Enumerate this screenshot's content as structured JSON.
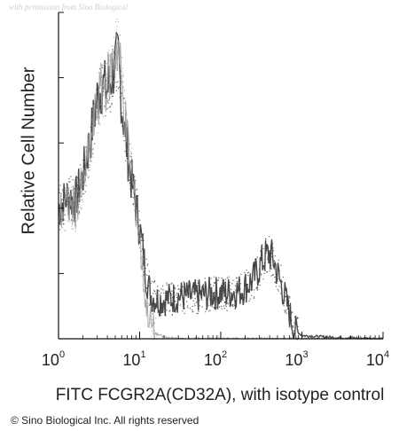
{
  "watermark": "with permission from Sino Biological",
  "copyright": "© Sino Biological Inc. All rights reserved",
  "chart_data": {
    "type": "area",
    "xlabel": "FITC FCGR2A(CD32A), with isotype control",
    "ylabel": "Relative Cell Number",
    "xscale": "log",
    "xlim": [
      1,
      10000
    ],
    "ylim": [
      0,
      1
    ],
    "x_ticks": [
      {
        "value": 1,
        "base": "10",
        "exp": "0"
      },
      {
        "value": 10,
        "base": "10",
        "exp": "1"
      },
      {
        "value": 100,
        "base": "10",
        "exp": "2"
      },
      {
        "value": 1000,
        "base": "10",
        "exp": "3"
      },
      {
        "value": 10000,
        "base": "10",
        "exp": "4"
      }
    ],
    "grid": false,
    "series": [
      {
        "color": "#2a2a2a",
        "x": [
          1.0,
          1.3,
          1.6,
          2.0,
          2.5,
          3.0,
          3.5,
          4.0,
          4.5,
          5.0,
          5.5,
          6.0,
          7.0,
          8.0,
          9.0,
          10.0,
          11.0,
          12.0,
          14.0,
          17.0,
          20.0,
          30.0,
          50.0,
          80.0,
          120.0,
          180.0,
          250.0,
          300.0,
          350.0,
          400.0,
          450.0,
          500.0,
          600.0,
          700.0,
          800.0,
          1000.0,
          2000.0,
          10000.0
        ],
        "y": [
          0.4,
          0.44,
          0.42,
          0.5,
          0.62,
          0.74,
          0.78,
          0.76,
          0.8,
          0.84,
          0.86,
          0.72,
          0.58,
          0.48,
          0.41,
          0.34,
          0.27,
          0.19,
          0.13,
          0.12,
          0.12,
          0.13,
          0.13,
          0.14,
          0.14,
          0.15,
          0.18,
          0.22,
          0.25,
          0.26,
          0.24,
          0.2,
          0.14,
          0.08,
          0.03,
          0.01,
          0.005,
          0.0
        ]
      },
      {
        "color": "#9a9a9a",
        "x": [
          1.0,
          1.3,
          1.6,
          2.0,
          2.5,
          3.0,
          3.5,
          4.0,
          4.5,
          5.0,
          5.5,
          6.0,
          7.0,
          8.0,
          9.0,
          10.0,
          11.0,
          12.0,
          14.0,
          16.0,
          20.0,
          30.0,
          100.0,
          10000.0
        ],
        "y": [
          0.38,
          0.41,
          0.4,
          0.47,
          0.6,
          0.72,
          0.77,
          0.79,
          0.83,
          0.88,
          0.9,
          0.78,
          0.62,
          0.5,
          0.4,
          0.3,
          0.2,
          0.1,
          0.04,
          0.015,
          0.005,
          0.0,
          0.0,
          0.0
        ]
      }
    ]
  }
}
